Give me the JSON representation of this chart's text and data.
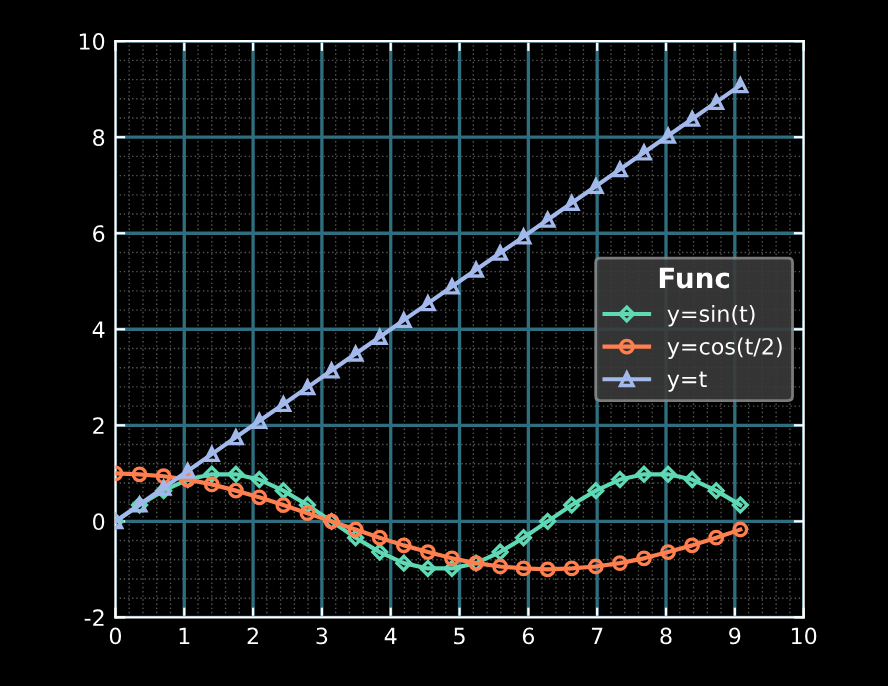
{
  "chart_data": {
    "type": "line",
    "legend_title": "Func",
    "legend": "right",
    "grid": true,
    "x": [
      0,
      0.35,
      0.7,
      1.05,
      1.4,
      1.75,
      2.09,
      2.44,
      2.79,
      3.14,
      3.49,
      3.84,
      4.19,
      4.54,
      4.89,
      5.24,
      5.59,
      5.93,
      6.28,
      6.63,
      6.98,
      7.33,
      7.68,
      8.03,
      8.38,
      8.73,
      9.08
    ],
    "series": [
      {
        "name": "y=sin(t)",
        "color": "#5fd8b4",
        "marker": "diamond",
        "values": [
          0,
          0.34,
          0.64,
          0.87,
          0.98,
          0.98,
          0.87,
          0.64,
          0.34,
          0,
          -0.34,
          -0.64,
          -0.87,
          -0.98,
          -0.98,
          -0.87,
          -0.64,
          -0.34,
          0,
          0.34,
          0.64,
          0.87,
          0.98,
          0.98,
          0.87,
          0.64,
          0.34
        ]
      },
      {
        "name": "y=cos(t/2)",
        "color": "#ff7f4f",
        "marker": "circle",
        "values": [
          1,
          0.98,
          0.94,
          0.87,
          0.77,
          0.64,
          0.5,
          0.34,
          0.17,
          0,
          -0.17,
          -0.34,
          -0.5,
          -0.64,
          -0.77,
          -0.87,
          -0.94,
          -0.98,
          -1,
          -0.98,
          -0.94,
          -0.87,
          -0.77,
          -0.64,
          -0.5,
          -0.34,
          -0.17
        ]
      },
      {
        "name": "y=t",
        "color": "#a3b9ec",
        "marker": "triangle",
        "values": [
          0,
          0.35,
          0.7,
          1.05,
          1.4,
          1.75,
          2.09,
          2.44,
          2.79,
          3.14,
          3.49,
          3.84,
          4.19,
          4.54,
          4.89,
          5.24,
          5.59,
          5.93,
          6.28,
          6.63,
          6.98,
          7.33,
          7.68,
          8.03,
          8.38,
          8.73,
          9.08
        ]
      }
    ],
    "xlim": [
      0,
      10
    ],
    "xticks": [
      0,
      1,
      2,
      3,
      4,
      5,
      6,
      7,
      8,
      9,
      10
    ],
    "ylim": [
      -2,
      10
    ],
    "yticks": [
      -2,
      0,
      2,
      4,
      6,
      8,
      10
    ]
  }
}
